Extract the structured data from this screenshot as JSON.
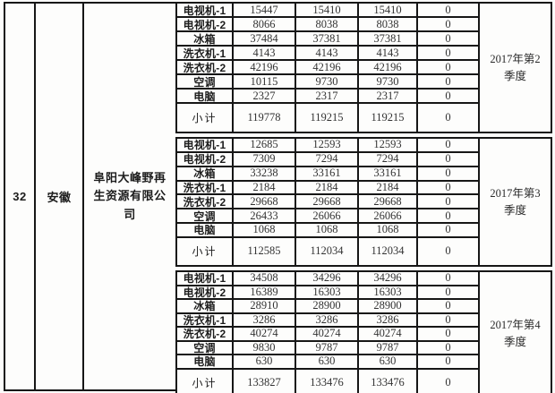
{
  "row_header": {
    "index": "32",
    "province": "安徽",
    "company": "阜阳大峰野再生资源有限公司"
  },
  "quarters": [
    {
      "period": "2017年第2季度",
      "rows": [
        {
          "item": "电视机-1",
          "v1": "15447",
          "v2": "15410",
          "v3": "15410",
          "v4": "0"
        },
        {
          "item": "电视机-2",
          "v1": "8066",
          "v2": "8038",
          "v3": "8038",
          "v4": "0"
        },
        {
          "item": "冰箱",
          "v1": "37484",
          "v2": "37381",
          "v3": "37381",
          "v4": "0"
        },
        {
          "item": "洗衣机-1",
          "v1": "4143",
          "v2": "4143",
          "v3": "4143",
          "v4": "0"
        },
        {
          "item": "洗衣机-2",
          "v1": "42196",
          "v2": "42196",
          "v3": "42196",
          "v4": "0"
        },
        {
          "item": "空调",
          "v1": "10115",
          "v2": "9730",
          "v3": "9730",
          "v4": "0"
        },
        {
          "item": "电脑",
          "v1": "2327",
          "v2": "2317",
          "v3": "2317",
          "v4": "0"
        },
        {
          "item": "小计",
          "v1": "119778",
          "v2": "119215",
          "v3": "119215",
          "v4": "0"
        }
      ]
    },
    {
      "period": "2017年第3季度",
      "rows": [
        {
          "item": "电视机-1",
          "v1": "12685",
          "v2": "12593",
          "v3": "12593",
          "v4": "0"
        },
        {
          "item": "电视机-2",
          "v1": "7309",
          "v2": "7294",
          "v3": "7294",
          "v4": "0"
        },
        {
          "item": "冰箱",
          "v1": "33238",
          "v2": "33161",
          "v3": "33161",
          "v4": "0"
        },
        {
          "item": "洗衣机-1",
          "v1": "2184",
          "v2": "2184",
          "v3": "2184",
          "v4": "0"
        },
        {
          "item": "洗衣机-2",
          "v1": "29668",
          "v2": "29668",
          "v3": "29668",
          "v4": "0"
        },
        {
          "item": "空调",
          "v1": "26433",
          "v2": "26066",
          "v3": "26066",
          "v4": "0"
        },
        {
          "item": "电脑",
          "v1": "1068",
          "v2": "1068",
          "v3": "1068",
          "v4": "0"
        },
        {
          "item": "小计",
          "v1": "112585",
          "v2": "112034",
          "v3": "112034",
          "v4": "0"
        }
      ]
    },
    {
      "period": "2017年第4季度",
      "rows": [
        {
          "item": "电视机-1",
          "v1": "34508",
          "v2": "34296",
          "v3": "34296",
          "v4": "0"
        },
        {
          "item": "电视机-2",
          "v1": "16389",
          "v2": "16303",
          "v3": "16303",
          "v4": "0"
        },
        {
          "item": "冰箱",
          "v1": "28910",
          "v2": "28900",
          "v3": "28900",
          "v4": "0"
        },
        {
          "item": "洗衣机-1",
          "v1": "3286",
          "v2": "3286",
          "v3": "3286",
          "v4": "0"
        },
        {
          "item": "洗衣机-2",
          "v1": "40274",
          "v2": "40274",
          "v3": "40274",
          "v4": "0"
        },
        {
          "item": "空调",
          "v1": "9830",
          "v2": "9787",
          "v3": "9787",
          "v4": "0"
        },
        {
          "item": "电脑",
          "v1": "630",
          "v2": "630",
          "v3": "630",
          "v4": "0"
        },
        {
          "item": "小计",
          "v1": "133827",
          "v2": "133476",
          "v3": "133476",
          "v4": "0"
        }
      ]
    }
  ],
  "colors": {
    "border": "#161616",
    "background": "#fcfcfb",
    "number_text": "#333333"
  }
}
